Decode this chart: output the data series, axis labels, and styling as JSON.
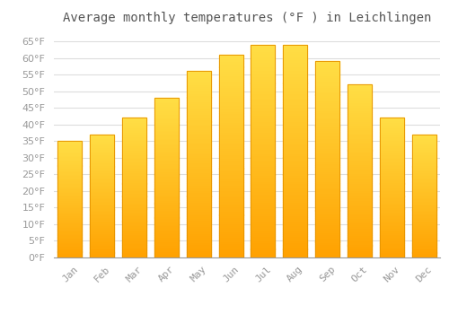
{
  "title": "Average monthly temperatures (°F ) in Leichlingen",
  "months": [
    "Jan",
    "Feb",
    "Mar",
    "Apr",
    "May",
    "Jun",
    "Jul",
    "Aug",
    "Sep",
    "Oct",
    "Nov",
    "Dec"
  ],
  "values": [
    35,
    37,
    42,
    48,
    56,
    61,
    64,
    64,
    59,
    52,
    42,
    37
  ],
  "bar_color_top": "#FFCC44",
  "bar_color_bottom": "#FFA000",
  "bar_edge_color": "#E89500",
  "background_color": "#FFFFFF",
  "grid_color": "#DDDDDD",
  "ylim": [
    0,
    68
  ],
  "yticks": [
    0,
    5,
    10,
    15,
    20,
    25,
    30,
    35,
    40,
    45,
    50,
    55,
    60,
    65
  ],
  "title_fontsize": 10,
  "tick_fontsize": 8,
  "tick_color": "#999999",
  "title_color": "#555555"
}
